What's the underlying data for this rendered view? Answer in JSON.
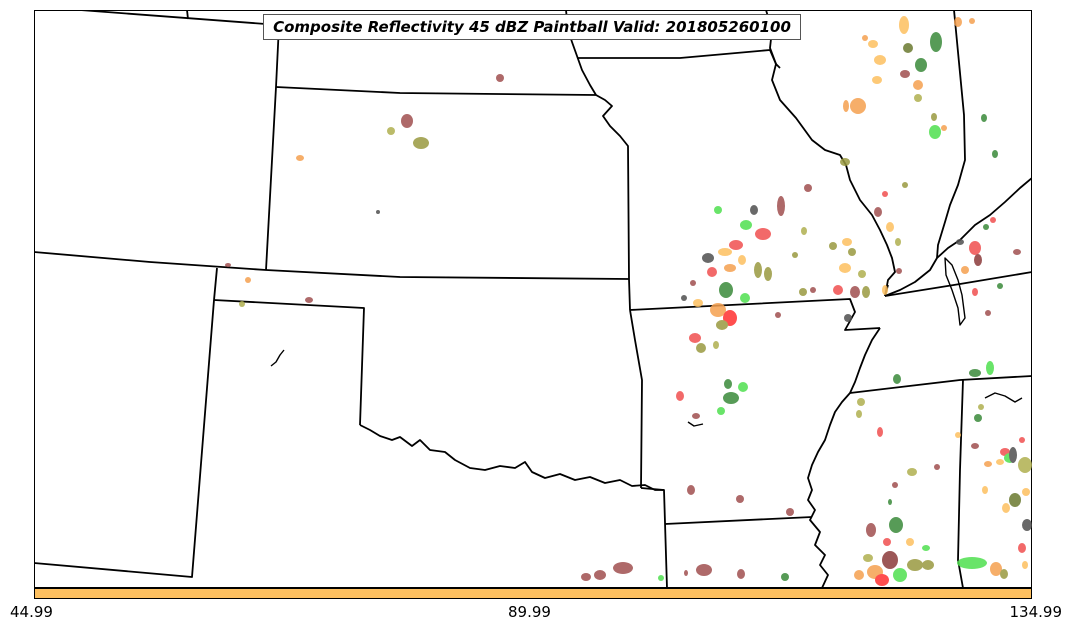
{
  "map": {
    "title": "Composite Reflectivity 45 dBZ Paintball Valid: 201805260100"
  },
  "colorbar": {
    "color": "#fdc060",
    "ticks": [
      "44.99",
      "89.99",
      "134.99"
    ]
  },
  "colors": {
    "state_lines": "#000000",
    "paintball_palette": [
      "#8b3a3a",
      "#a05050",
      "#f05050",
      "#ff3030",
      "#f5a050",
      "#fdc060",
      "#9a9a40",
      "#b0b050",
      "#3a8a3a",
      "#50e050",
      "#505050",
      "#6a7a30"
    ]
  }
}
